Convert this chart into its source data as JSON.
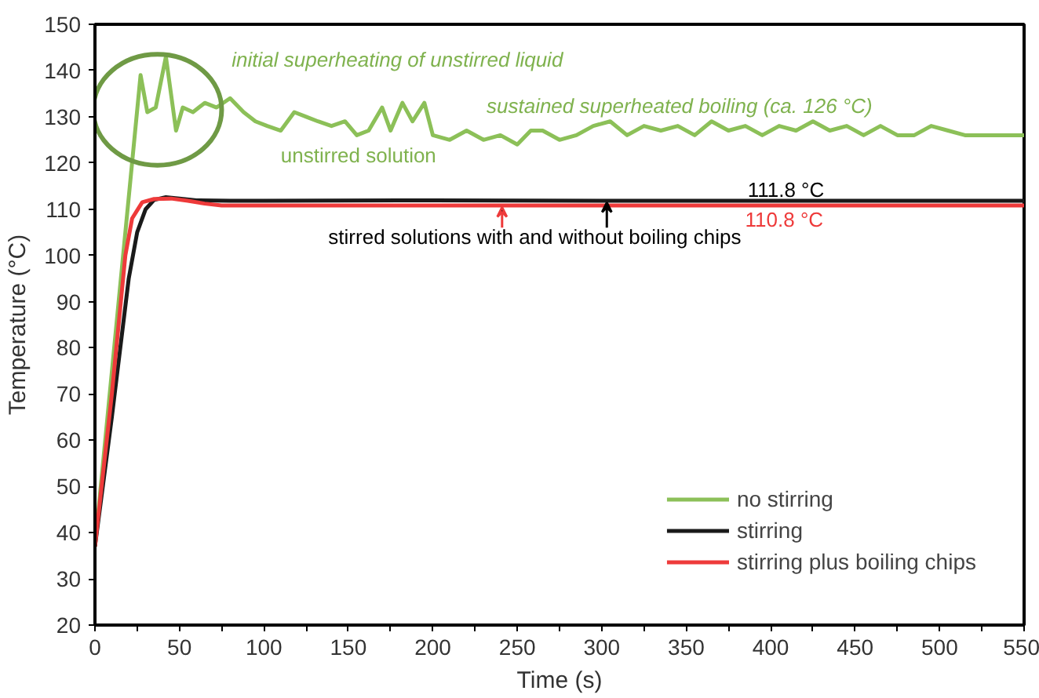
{
  "chart_data": {
    "type": "line",
    "xlabel": "Time (s)",
    "ylabel": "Temperature (°C)",
    "xlim": [
      0,
      550
    ],
    "ylim": [
      20,
      150
    ],
    "xticks": [
      0,
      {
        "value": 25,
        "label": null
      },
      50,
      {
        "value": 75,
        "label": null
      },
      100,
      {
        "value": 125,
        "label": null
      },
      150,
      {
        "value": 175,
        "label": null
      },
      200,
      {
        "value": 225,
        "label": null
      },
      250,
      {
        "value": 275,
        "label": null
      },
      300,
      {
        "value": 325,
        "label": null
      },
      350,
      {
        "value": 375,
        "label": null
      },
      400,
      {
        "value": 425,
        "label": null
      },
      450,
      {
        "value": 475,
        "label": null
      },
      500,
      {
        "value": 525,
        "label": null
      },
      550
    ],
    "yticks": [
      20,
      30,
      40,
      50,
      60,
      70,
      80,
      90,
      100,
      110,
      120,
      130,
      140,
      150
    ],
    "grid": false,
    "legend": "bottom right",
    "marker": "none",
    "line_style": "solid",
    "series": [
      {
        "name": "no stirring",
        "color": "#8cc058",
        "x": [
          0,
          27,
          31,
          36,
          42,
          48,
          52,
          58,
          65,
          72,
          80,
          88,
          95,
          102,
          110,
          118,
          125,
          132,
          140,
          148,
          155,
          162,
          170,
          175,
          182,
          188,
          195,
          200,
          210,
          220,
          230,
          240,
          250,
          258,
          265,
          275,
          285,
          295,
          305,
          315,
          325,
          335,
          345,
          355,
          365,
          375,
          385,
          395,
          405,
          415,
          425,
          435,
          445,
          455,
          465,
          475,
          485,
          495,
          505,
          515,
          525,
          535,
          550
        ],
        "values": [
          37,
          139,
          131,
          132,
          143,
          127,
          132,
          131,
          133,
          132,
          134,
          131,
          129,
          128,
          127,
          131,
          130,
          129,
          128,
          129,
          126,
          127,
          132,
          127,
          133,
          129,
          133,
          126,
          125,
          127,
          125,
          126,
          124,
          127,
          127,
          125,
          126,
          128,
          129,
          126,
          128,
          127,
          128,
          126,
          129,
          127,
          128,
          126,
          128,
          127,
          129,
          127,
          128,
          126,
          128,
          126,
          126,
          128,
          127,
          126,
          126,
          126,
          126
        ]
      },
      {
        "name": "stirring",
        "color": "#1a1a1a",
        "x": [
          0,
          10,
          20,
          25,
          30,
          35,
          42,
          50,
          60,
          80,
          100,
          200,
          300,
          400,
          550
        ],
        "values": [
          37,
          65,
          95,
          105,
          110,
          112,
          112.6,
          112.3,
          111.9,
          111.8,
          111.8,
          111.9,
          111.8,
          111.8,
          111.8
        ]
      },
      {
        "name": "stirring plus boiling chips",
        "color": "#ee3a3a",
        "x": [
          0,
          10,
          18,
          22,
          28,
          35,
          45,
          55,
          65,
          75,
          150,
          300,
          550
        ],
        "values": [
          37,
          70,
          100,
          108,
          111.5,
          112.2,
          112.3,
          111.8,
          111.2,
          110.8,
          110.8,
          110.8,
          110.8
        ]
      }
    ],
    "annotations": [
      "initial superheating of unstirred liquid",
      "sustained superheated boiling (ca. 126 °C)",
      "unstirred solution",
      "111.8 °C",
      "110.8 °C",
      "stirred solutions with and without  boiling chips"
    ]
  }
}
